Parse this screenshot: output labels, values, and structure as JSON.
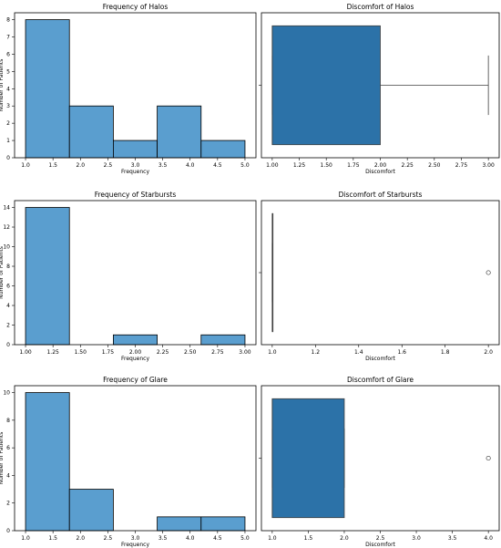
{
  "chart_data": [
    {
      "type": "bar",
      "title": "Frequency of Halos",
      "xlabel": "Frequency",
      "ylabel": "Number of Patients",
      "bins": [
        [
          1.0,
          1.8
        ],
        [
          1.8,
          2.6
        ],
        [
          2.6,
          3.4
        ],
        [
          3.4,
          4.2
        ],
        [
          4.2,
          5.0
        ]
      ],
      "values": [
        8,
        3,
        1,
        3,
        1
      ],
      "xlim": [
        0.8,
        5.2
      ],
      "ylim": [
        0,
        8.4
      ],
      "xticks": [
        1.0,
        1.5,
        2.0,
        2.5,
        3.0,
        3.5,
        4.0,
        4.5,
        5.0
      ],
      "yticks": [
        0,
        1,
        2,
        3,
        4,
        5,
        6,
        7,
        8
      ],
      "xtick_decimals": 1,
      "color": "#5a9ecf"
    },
    {
      "type": "box",
      "title": "Discomfort of Halos",
      "xlabel": "Discomfort",
      "stats": {
        "whislo": 1.0,
        "q1": 1.0,
        "median": 1.0,
        "q3": 2.0,
        "whishi": 3.0
      },
      "fliers": [],
      "xlim": [
        0.9,
        3.1
      ],
      "xticks": [
        1.0,
        1.25,
        1.5,
        1.75,
        2.0,
        2.25,
        2.5,
        2.75,
        3.0
      ],
      "xtick_decimals": 2,
      "color": "#2c72a8"
    },
    {
      "type": "bar",
      "title": "Frequency of Starbursts",
      "xlabel": "Frequency",
      "ylabel": "Number of Patients",
      "bins": [
        [
          1.0,
          1.4
        ],
        [
          1.4,
          1.8
        ],
        [
          1.8,
          2.2
        ],
        [
          2.2,
          2.6
        ],
        [
          2.6,
          3.0
        ]
      ],
      "values": [
        14,
        0,
        1,
        0,
        1
      ],
      "xlim": [
        0.9,
        3.1
      ],
      "ylim": [
        0,
        14.7
      ],
      "xticks": [
        1.0,
        1.25,
        1.5,
        1.75,
        2.0,
        2.25,
        2.5,
        2.75,
        3.0
      ],
      "yticks": [
        0,
        2,
        4,
        6,
        8,
        10,
        12,
        14
      ],
      "xtick_decimals": 2,
      "color": "#5a9ecf"
    },
    {
      "type": "box",
      "title": "Discomfort of Starbursts",
      "xlabel": "Discomfort",
      "stats": {
        "whislo": 1.0,
        "q1": 1.0,
        "median": 1.0,
        "q3": 1.0,
        "whishi": 1.0
      },
      "fliers": [
        2.0
      ],
      "xlim": [
        0.95,
        2.05
      ],
      "xticks": [
        1.0,
        1.2,
        1.4,
        1.6,
        1.8,
        2.0
      ],
      "xtick_decimals": 1,
      "color": "#2c72a8"
    },
    {
      "type": "bar",
      "title": "Frequency of Glare",
      "xlabel": "Frequency",
      "ylabel": "Number of Patients",
      "bins": [
        [
          1.0,
          1.8
        ],
        [
          1.8,
          2.6
        ],
        [
          2.6,
          3.4
        ],
        [
          3.4,
          4.2
        ],
        [
          4.2,
          5.0
        ]
      ],
      "values": [
        10,
        3,
        0,
        1,
        1
      ],
      "xlim": [
        0.8,
        5.2
      ],
      "ylim": [
        0,
        10.5
      ],
      "xticks": [
        1.0,
        1.5,
        2.0,
        2.5,
        3.0,
        3.5,
        4.0,
        4.5,
        5.0
      ],
      "yticks": [
        0,
        2,
        4,
        6,
        8,
        10
      ],
      "xtick_decimals": 1,
      "color": "#5a9ecf"
    },
    {
      "type": "box",
      "title": "Discomfort of Glare",
      "xlabel": "Discomfort",
      "stats": {
        "whislo": 1.0,
        "q1": 1.0,
        "median": 1.0,
        "q3": 2.0,
        "whishi": 2.0
      },
      "fliers": [
        4.0
      ],
      "xlim": [
        0.85,
        4.15
      ],
      "xticks": [
        1.0,
        1.5,
        2.0,
        2.5,
        3.0,
        3.5,
        4.0
      ],
      "xtick_decimals": 1,
      "color": "#2c72a8"
    }
  ]
}
